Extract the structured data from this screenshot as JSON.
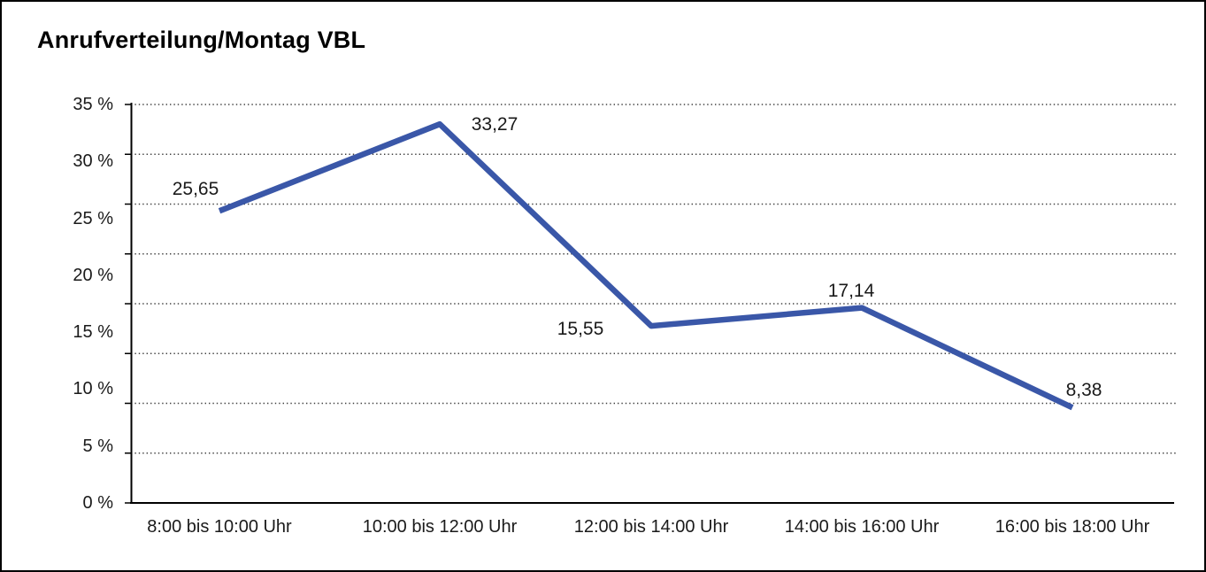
{
  "chart_data": {
    "type": "line",
    "title": "Anrufverteilung/Montag VBL",
    "categories": [
      "8:00 bis 10:00 Uhr",
      "10:00 bis 12:00 Uhr",
      "12:00 bis 14:00 Uhr",
      "14:00 bis 16:00 Uhr",
      "16:00 bis 18:00 Uhr"
    ],
    "values": [
      25.65,
      33.27,
      15.55,
      17.14,
      8.38
    ],
    "value_labels": [
      "25,65",
      "33,27",
      "15,55",
      "17,14",
      "8,38"
    ],
    "y_tick_labels": [
      "35 %",
      "30 %",
      "25 %",
      "20 %",
      "15 %",
      "10 %",
      "5 %",
      "0 %"
    ],
    "ylim": [
      0,
      35
    ],
    "xlabel": "",
    "ylabel": "",
    "legend": "none",
    "grid": "horizontal-dotted",
    "y_gridline_count": 9,
    "series_name": "Anrufverteilung Montag VBL"
  },
  "colors": {
    "line": "#3A57A8",
    "axis": "#000000",
    "grid": "#404040",
    "text": "#1A1A1A",
    "background": "#FFFFFF",
    "border": "#000000"
  }
}
